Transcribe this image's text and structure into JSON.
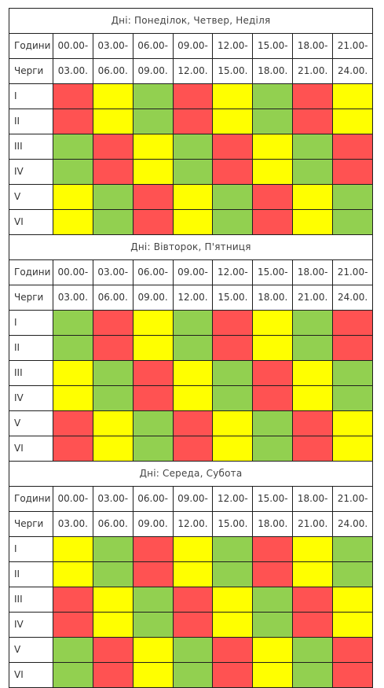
{
  "colors": {
    "red": "#ff5252",
    "yellow": "#ffff00",
    "green": "#92d050"
  },
  "header_labels": {
    "hours": "Години",
    "queues": "Черги"
  },
  "time_start": [
    "00.00-",
    "03.00-",
    "06.00-",
    "09.00-",
    "12.00-",
    "15.00-",
    "18.00-",
    "21.00-"
  ],
  "time_end": [
    "03.00.",
    "06.00.",
    "09.00.",
    "12.00.",
    "15.00.",
    "18.00.",
    "21.00.",
    "24.00."
  ],
  "queues": [
    "I",
    "II",
    "III",
    "IV",
    "V",
    "VI"
  ],
  "schedules": [
    {
      "days": "Дні: Понеділок, Четвер, Неділя",
      "grid": [
        [
          "red",
          "yellow",
          "green",
          "red",
          "yellow",
          "green",
          "red",
          "yellow"
        ],
        [
          "red",
          "yellow",
          "green",
          "red",
          "yellow",
          "green",
          "red",
          "yellow"
        ],
        [
          "green",
          "red",
          "yellow",
          "green",
          "red",
          "yellow",
          "green",
          "red"
        ],
        [
          "green",
          "red",
          "yellow",
          "green",
          "red",
          "yellow",
          "green",
          "red"
        ],
        [
          "yellow",
          "green",
          "red",
          "yellow",
          "green",
          "red",
          "yellow",
          "green"
        ],
        [
          "yellow",
          "green",
          "red",
          "yellow",
          "green",
          "red",
          "yellow",
          "green"
        ]
      ]
    },
    {
      "days": "Дні: Вівторок, П'ятниця",
      "grid": [
        [
          "green",
          "red",
          "yellow",
          "green",
          "red",
          "yellow",
          "green",
          "red"
        ],
        [
          "green",
          "red",
          "yellow",
          "green",
          "red",
          "yellow",
          "green",
          "red"
        ],
        [
          "yellow",
          "green",
          "red",
          "yellow",
          "green",
          "red",
          "yellow",
          "green"
        ],
        [
          "yellow",
          "green",
          "red",
          "yellow",
          "green",
          "red",
          "yellow",
          "green"
        ],
        [
          "red",
          "yellow",
          "green",
          "red",
          "yellow",
          "green",
          "red",
          "yellow"
        ],
        [
          "red",
          "yellow",
          "green",
          "red",
          "yellow",
          "green",
          "red",
          "yellow"
        ]
      ]
    },
    {
      "days": "Дні: Середа, Субота",
      "grid": [
        [
          "yellow",
          "green",
          "red",
          "yellow",
          "green",
          "red",
          "yellow",
          "green"
        ],
        [
          "yellow",
          "green",
          "red",
          "yellow",
          "green",
          "red",
          "yellow",
          "green"
        ],
        [
          "red",
          "yellow",
          "green",
          "red",
          "yellow",
          "green",
          "red",
          "yellow"
        ],
        [
          "red",
          "yellow",
          "green",
          "red",
          "yellow",
          "green",
          "red",
          "yellow"
        ],
        [
          "green",
          "red",
          "yellow",
          "green",
          "red",
          "yellow",
          "green",
          "red"
        ],
        [
          "green",
          "red",
          "yellow",
          "green",
          "red",
          "yellow",
          "green",
          "red"
        ]
      ]
    }
  ]
}
